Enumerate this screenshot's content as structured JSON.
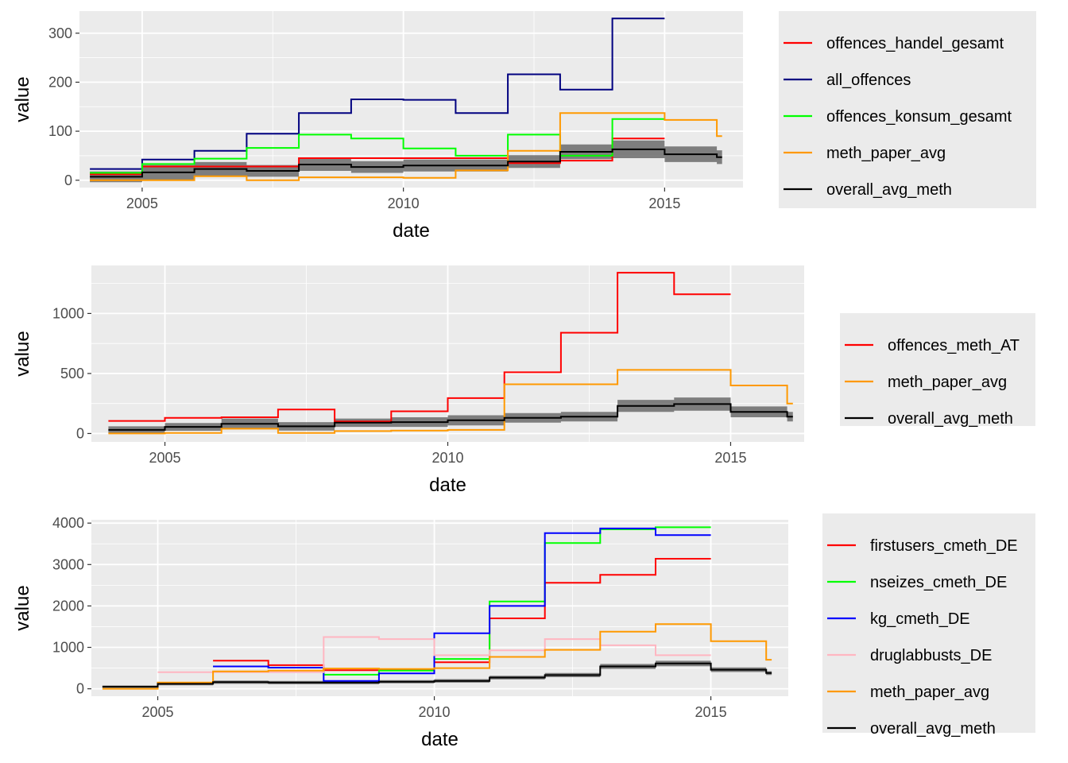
{
  "chart_data": [
    {
      "type": "line",
      "xlabel": "date",
      "ylabel": "value",
      "xlim": [
        2003.8,
        2016.5
      ],
      "ylim": [
        -15,
        345
      ],
      "xticks": [
        2005,
        2010,
        2015
      ],
      "yticks": [
        0,
        100,
        200,
        300
      ],
      "grid": true,
      "legend_position": "right",
      "series": [
        {
          "name": "offences_handel_gesamt",
          "color": "#ff0000",
          "x": [
            2004,
            2005,
            2006,
            2007,
            2008,
            2009,
            2010,
            2011,
            2012,
            2013,
            2014,
            2015
          ],
          "y": [
            12,
            28,
            28,
            28,
            45,
            45,
            45,
            45,
            35,
            40,
            85,
            85
          ]
        },
        {
          "name": "all_offences",
          "color": "#000080",
          "x": [
            2004,
            2005,
            2006,
            2007,
            2008,
            2009,
            2010,
            2011,
            2012,
            2013,
            2014,
            2015
          ],
          "y": [
            23,
            42,
            60,
            95,
            137,
            165,
            164,
            137,
            216,
            185,
            330,
            330
          ]
        },
        {
          "name": "offences_konsum_gesamt",
          "color": "#00ff00",
          "x": [
            2004,
            2005,
            2006,
            2007,
            2008,
            2009,
            2010,
            2011,
            2012,
            2013,
            2014,
            2015
          ],
          "y": [
            15,
            33,
            44,
            66,
            93,
            85,
            65,
            50,
            93,
            50,
            125,
            125
          ]
        },
        {
          "name": "meth_paper_avg",
          "color": "#ff9900",
          "x": [
            2004,
            2005,
            2006,
            2007,
            2008,
            2009,
            2010,
            2011,
            2012,
            2013,
            2014,
            2015,
            2016,
            2016.1
          ],
          "y": [
            0,
            0,
            8,
            0,
            6,
            6,
            5,
            20,
            60,
            137,
            137,
            123,
            90,
            90
          ]
        },
        {
          "name": "overall_avg_meth",
          "color": "#000000",
          "x": [
            2004,
            2005,
            2006,
            2007,
            2008,
            2009,
            2010,
            2011,
            2012,
            2013,
            2014,
            2015,
            2016,
            2016.1
          ],
          "y": [
            7,
            16,
            23,
            19,
            32,
            27,
            30,
            30,
            38,
            58,
            63,
            53,
            47,
            47
          ],
          "ribbon": [
            11,
            15,
            14,
            12,
            13,
            12,
            12,
            12,
            13,
            15,
            18,
            16,
            14,
            14
          ]
        }
      ]
    },
    {
      "type": "line",
      "xlabel": "date",
      "ylabel": "value",
      "xlim": [
        2003.7,
        2016.3
      ],
      "ylim": [
        -70,
        1400
      ],
      "xticks": [
        2005,
        2010,
        2015
      ],
      "yticks": [
        0,
        500,
        1000
      ],
      "grid": true,
      "legend_position": "right",
      "series": [
        {
          "name": "offences_meth_AT",
          "color": "#ff0000",
          "x": [
            2004,
            2005,
            2006,
            2007,
            2008,
            2009,
            2010,
            2011,
            2012,
            2013,
            2014,
            2015
          ],
          "y": [
            105,
            130,
            135,
            200,
            100,
            185,
            295,
            510,
            840,
            1340,
            1160,
            1160
          ]
        },
        {
          "name": "meth_paper_avg",
          "color": "#ff9900",
          "x": [
            2004,
            2005,
            2006,
            2007,
            2008,
            2009,
            2010,
            2011,
            2012,
            2013,
            2014,
            2015,
            2016,
            2016.1
          ],
          "y": [
            0,
            5,
            40,
            5,
            20,
            25,
            30,
            410,
            410,
            530,
            530,
            400,
            250,
            250
          ]
        },
        {
          "name": "overall_avg_meth",
          "color": "#000000",
          "x": [
            2004,
            2005,
            2006,
            2007,
            2008,
            2009,
            2010,
            2011,
            2012,
            2013,
            2014,
            2015,
            2016,
            2016.1
          ],
          "y": [
            30,
            55,
            80,
            60,
            90,
            95,
            110,
            130,
            140,
            230,
            245,
            180,
            140,
            140
          ],
          "ribbon": [
            30,
            32,
            45,
            35,
            35,
            40,
            42,
            40,
            40,
            50,
            55,
            45,
            40,
            40
          ]
        }
      ]
    },
    {
      "type": "line",
      "xlabel": "date",
      "ylabel": "value",
      "xlim": [
        2003.8,
        2016.4
      ],
      "ylim": [
        -180,
        4080
      ],
      "xticks": [
        2005,
        2010,
        2015
      ],
      "yticks": [
        0,
        1000,
        2000,
        3000,
        4000
      ],
      "grid": true,
      "legend_position": "right",
      "series": [
        {
          "name": "firstusers_cmeth_DE",
          "color": "#ff0000",
          "x": [
            2006,
            2007,
            2008,
            2009,
            2010,
            2011,
            2012,
            2013,
            2014,
            2015
          ],
          "y": [
            680,
            570,
            450,
            450,
            640,
            1700,
            2560,
            2750,
            3140,
            3140
          ]
        },
        {
          "name": "nseizes_cmeth_DE",
          "color": "#00ff00",
          "x": [
            2006,
            2007,
            2008,
            2009,
            2010,
            2011,
            2012,
            2013,
            2014,
            2015
          ],
          "y": [
            540,
            510,
            340,
            440,
            720,
            2110,
            3520,
            3850,
            3900,
            3900
          ]
        },
        {
          "name": "kg_cmeth_DE",
          "color": "#0000ff",
          "x": [
            2006,
            2007,
            2008,
            2009,
            2010,
            2011,
            2012,
            2013,
            2014,
            2015
          ],
          "y": [
            540,
            510,
            190,
            370,
            1340,
            2000,
            3760,
            3870,
            3710,
            3710
          ]
        },
        {
          "name": "druglabbusts_DE",
          "color": "#ffb6c1",
          "x": [
            2005,
            2006,
            2007,
            2008,
            2009,
            2010,
            2011,
            2012,
            2013,
            2014,
            2015
          ],
          "y": [
            400,
            400,
            400,
            1250,
            1200,
            810,
            930,
            1200,
            1050,
            810,
            810
          ]
        },
        {
          "name": "meth_paper_avg",
          "color": "#ff9900",
          "x": [
            2004,
            2005,
            2006,
            2007,
            2008,
            2009,
            2010,
            2011,
            2012,
            2013,
            2014,
            2015,
            2016,
            2016.1
          ],
          "y": [
            0,
            150,
            420,
            440,
            490,
            480,
            500,
            770,
            940,
            1380,
            1560,
            1150,
            700,
            700
          ]
        },
        {
          "name": "overall_avg_meth",
          "color": "#000000",
          "x": [
            2004,
            2005,
            2006,
            2007,
            2008,
            2009,
            2010,
            2011,
            2012,
            2013,
            2014,
            2015,
            2016,
            2016.1
          ],
          "y": [
            50,
            120,
            160,
            150,
            150,
            170,
            190,
            270,
            330,
            540,
            610,
            460,
            380,
            380
          ],
          "ribbon": [
            30,
            35,
            40,
            40,
            40,
            40,
            42,
            45,
            50,
            60,
            65,
            55,
            45,
            45
          ]
        }
      ]
    }
  ]
}
